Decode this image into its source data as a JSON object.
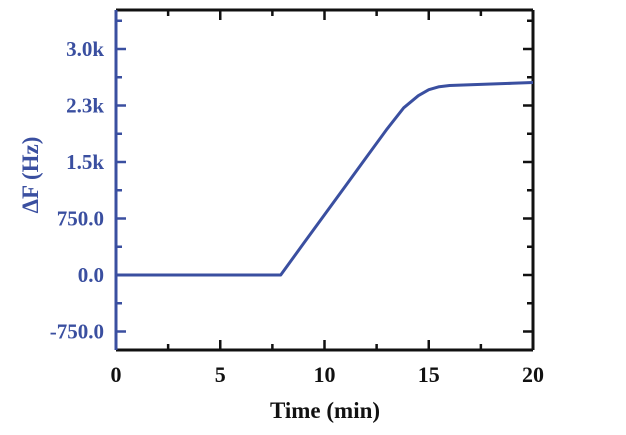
{
  "chart_data": {
    "type": "line",
    "title": "",
    "xlabel": "Time (min)",
    "ylabel": "ΔF (Hz)",
    "xlim": [
      0,
      20
    ],
    "ylim": [
      -1000,
      3400
    ],
    "x_ticks": [
      "0",
      "5",
      "10",
      "15",
      "20"
    ],
    "y_ticks": [
      "3.0k",
      "2.3k",
      "1.5k",
      "750.0",
      "0.0",
      "-750.0"
    ],
    "y_tick_values": [
      3000,
      2250,
      1500,
      750,
      0,
      -750
    ],
    "grid": false,
    "legend": null,
    "series": [
      {
        "name": "ΔF",
        "color": "#3a4fa0",
        "x": [
          0,
          2,
          4,
          6,
          7.9,
          9,
          10,
          11,
          12,
          13,
          13.8,
          14.5,
          15,
          15.5,
          16,
          17,
          18,
          19,
          20
        ],
        "y": [
          0,
          0,
          0,
          0,
          0,
          420,
          800,
          1180,
          1560,
          1940,
          2220,
          2380,
          2460,
          2500,
          2515,
          2525,
          2535,
          2545,
          2555
        ]
      }
    ]
  },
  "colors": {
    "series": "#3a4fa0",
    "y_axis": "#3a4fa0",
    "frame": "#111111"
  }
}
